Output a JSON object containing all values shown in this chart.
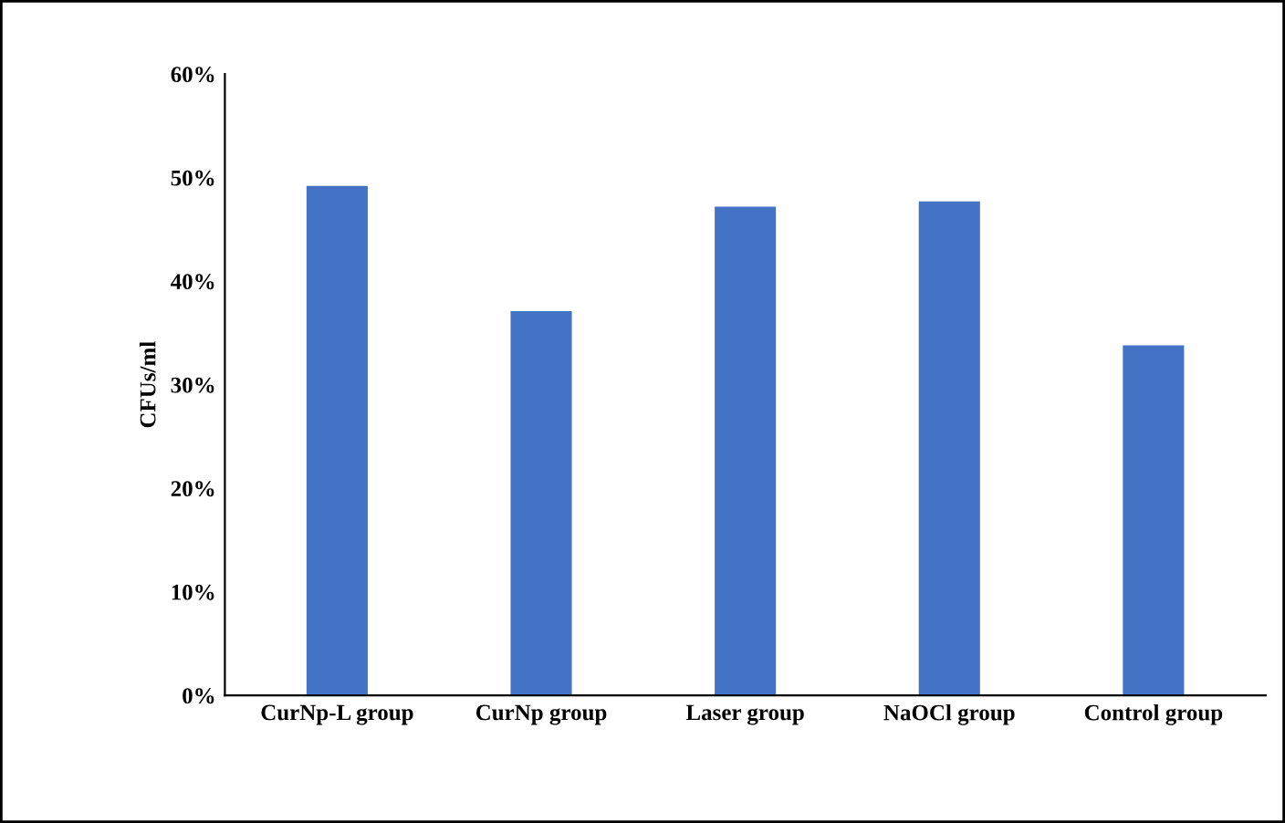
{
  "chart_data": {
    "type": "bar",
    "ylabel": "CFUs/ml",
    "categories": [
      "CurNp-L group",
      "CurNp group",
      "Laser group",
      "NaOCl group",
      "Control group"
    ],
    "values": [
      49.2,
      37.1,
      47.2,
      47.7,
      33.8
    ],
    "color": "#4472c4",
    "ylim": [
      0,
      60
    ],
    "yticks": [
      {
        "value": 0,
        "label": "0%"
      },
      {
        "value": 10,
        "label": "10%"
      },
      {
        "value": 20,
        "label": "20%"
      },
      {
        "value": 30,
        "label": "30%"
      },
      {
        "value": 40,
        "label": "40%"
      },
      {
        "value": 50,
        "label": "50%"
      },
      {
        "value": 60,
        "label": "60%"
      }
    ],
    "grid": false,
    "legend": false
  }
}
